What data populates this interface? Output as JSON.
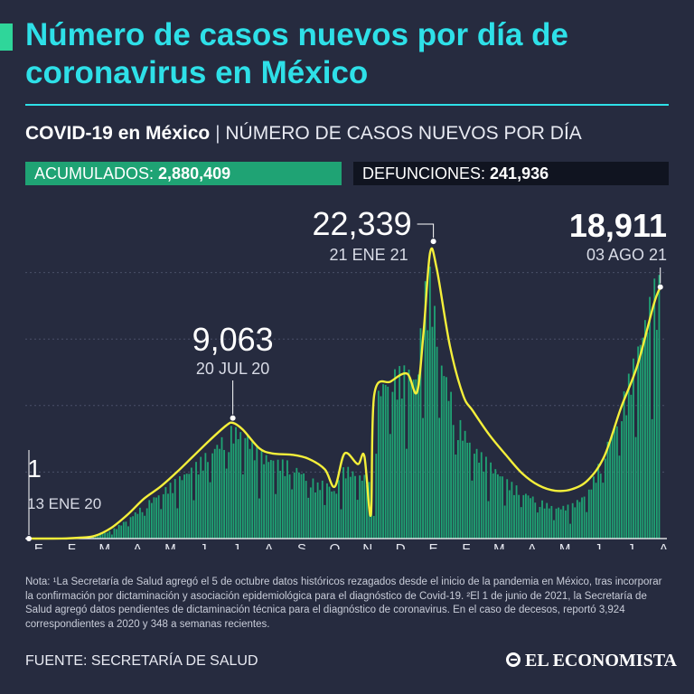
{
  "header": {
    "title": "Número de casos nuevos por día de coronavirus en México",
    "subtitle_bold": "COVID-19 en México",
    "subtitle_sep": "|",
    "subtitle_rest": "NÚMERO DE CASOS NUEVOS POR DÍA"
  },
  "stats": {
    "accum_label": "ACUMULADOS:",
    "accum_value": "2,880,409",
    "deaths_label": "DEFUNCIONES:",
    "deaths_value": "241,936"
  },
  "chart_data": {
    "type": "bar",
    "title": "",
    "xlabel": "",
    "ylabel": "",
    "ylim": [
      0,
      25000
    ],
    "x_ticks": [
      "E",
      "F",
      "M",
      "A",
      "M",
      "J",
      "J",
      "A",
      "S",
      "O",
      "N",
      "D",
      "E",
      "F",
      "M",
      "A",
      "M",
      "J",
      "J",
      "A"
    ],
    "x_range": [
      0,
      19.4
    ],
    "grid": true,
    "series": [
      {
        "kind": "bars-daily-cases",
        "color": "#1fa374",
        "points": [
          [
            0,
            1
          ],
          [
            0.5,
            0
          ],
          [
            1,
            2
          ],
          [
            1.5,
            10
          ],
          [
            2,
            200
          ],
          [
            2.5,
            600
          ],
          [
            3,
            1500
          ],
          [
            3.5,
            2600
          ],
          [
            4,
            3600
          ],
          [
            4.5,
            4600
          ],
          [
            5,
            5600
          ],
          [
            5.5,
            6800
          ],
          [
            6,
            8100
          ],
          [
            6.2,
            8600
          ],
          [
            6.6,
            8200
          ],
          [
            7,
            6700
          ],
          [
            7.5,
            6100
          ],
          [
            8,
            5800
          ],
          [
            8.5,
            4800
          ],
          [
            8.8,
            4200
          ],
          [
            9,
            4600
          ],
          [
            9.3,
            3600
          ],
          [
            9.6,
            5600
          ],
          [
            10,
            5000
          ],
          [
            10.3,
            4800
          ],
          [
            10.5,
            2500
          ],
          [
            10.6,
            11000
          ],
          [
            10.7,
            12000
          ],
          [
            11,
            12700
          ],
          [
            11.5,
            13200
          ],
          [
            11.8,
            12500
          ],
          [
            12,
            19000
          ],
          [
            12.2,
            20500
          ],
          [
            12.5,
            14500
          ],
          [
            13,
            9500
          ],
          [
            13.5,
            7200
          ],
          [
            14,
            5900
          ],
          [
            14.5,
            4600
          ],
          [
            15,
            3700
          ],
          [
            15.5,
            3000
          ],
          [
            16,
            2400
          ],
          [
            16.5,
            2600
          ],
          [
            17,
            3600
          ],
          [
            17.5,
            6800
          ],
          [
            18,
            10200
          ],
          [
            18.5,
            14800
          ],
          [
            19,
            19500
          ],
          [
            19.2,
            20000
          ]
        ]
      },
      {
        "kind": "trend",
        "color": "#f4ef3a",
        "points": [
          [
            0,
            1
          ],
          [
            1,
            5
          ],
          [
            1.5,
            60
          ],
          [
            2,
            200
          ],
          [
            2.5,
            800
          ],
          [
            3,
            1800
          ],
          [
            3.5,
            3000
          ],
          [
            4,
            3900
          ],
          [
            4.5,
            5000
          ],
          [
            5,
            6200
          ],
          [
            5.5,
            7400
          ],
          [
            6,
            8500
          ],
          [
            6.2,
            8700
          ],
          [
            6.5,
            8200
          ],
          [
            7,
            6800
          ],
          [
            7.4,
            6400
          ],
          [
            8,
            6300
          ],
          [
            8.5,
            6000
          ],
          [
            9,
            5200
          ],
          [
            9.3,
            3900
          ],
          [
            9.6,
            6400
          ],
          [
            10,
            5600
          ],
          [
            10.2,
            6200
          ],
          [
            10.4,
            1800
          ],
          [
            10.5,
            10800
          ],
          [
            11,
            11800
          ],
          [
            11.5,
            12400
          ],
          [
            11.8,
            11000
          ],
          [
            12,
            15500
          ],
          [
            12.2,
            21500
          ],
          [
            12.4,
            20300
          ],
          [
            12.8,
            14500
          ],
          [
            13.2,
            10800
          ],
          [
            13.5,
            9600
          ],
          [
            14,
            7800
          ],
          [
            14.5,
            6300
          ],
          [
            15,
            4900
          ],
          [
            15.5,
            4000
          ],
          [
            16,
            3600
          ],
          [
            16.5,
            3700
          ],
          [
            17,
            4400
          ],
          [
            17.5,
            6200
          ],
          [
            18,
            9800
          ],
          [
            18.5,
            13000
          ],
          [
            19,
            17600
          ],
          [
            19.2,
            18900
          ]
        ]
      }
    ],
    "annotations": [
      {
        "value": "1",
        "date": "13 ENE 20",
        "x": 0,
        "y": 1
      },
      {
        "value": "9,063",
        "date": "20 JUL 20",
        "x": 6.2,
        "y": 9063
      },
      {
        "value": "22,339",
        "date": "21 ENE 21",
        "x": 12.3,
        "y": 22339
      },
      {
        "value": "18,911",
        "date": "03 AGO 21",
        "x": 19.2,
        "y": 18911
      }
    ]
  },
  "notes": {
    "note_text": "Nota: ¹La Secretaría de Salud agregó el 5 de octubre datos históricos rezagados desde el inicio de la pandemia en México, tras incorporar la confirmación por dictaminación y asociación epidemiológica para el diagnóstico de Covid-19. ²El 1 de junio de 2021, la Secretaría de Salud agregó datos pendientes de dictaminación técnica para el diagnóstico de coronavirus. En el caso de decesos, reportó 3,924 correspondientes a 2020 y 348 a semanas recientes.",
    "source": "FUENTE: SECRETARÍA DE SALUD"
  },
  "brand": {
    "logo_text": "EL ECONOMISTA",
    "accent_color": "#2ee0e8",
    "green_color": "#1fa374",
    "yellow_color": "#f4ef3a"
  }
}
